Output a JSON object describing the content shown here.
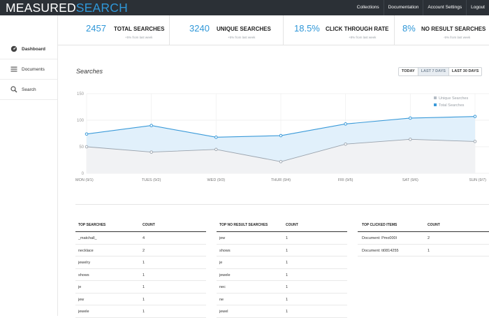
{
  "brand": {
    "part1": "MEASURED",
    "part2": "SEARCH"
  },
  "nav": [
    "Collections",
    "Documentation",
    "Account Settings",
    "Logout"
  ],
  "sidebar": [
    {
      "label": "Dashboard",
      "icon": "dashboard-icon"
    },
    {
      "label": "Documents",
      "icon": "menu-icon"
    },
    {
      "label": "Search",
      "icon": "search-icon"
    }
  ],
  "stats": [
    {
      "value": "2457",
      "label": "TOTAL SEARCHES",
      "sub": "+5% from last week"
    },
    {
      "value": "3240",
      "label": "UNIQUE SEARCHES",
      "sub": "+5% from last week"
    },
    {
      "value": "18.5%",
      "label": "CLICK THROUGH RATE",
      "sub": "+8% from last week"
    },
    {
      "value": "8%",
      "label": "NO RESULT SEARCHES",
      "sub": "-5% from last week"
    }
  ],
  "section_title": "Searches",
  "range": {
    "options": [
      "TODAY",
      "LAST 7 DAYS",
      "LAST 30 DAYS"
    ],
    "selected": "LAST 7 DAYS"
  },
  "chart_data": {
    "type": "area",
    "categories": [
      "MON (9/1)",
      "TUES (9/2)",
      "WED (9/3)",
      "THUR (9/4)",
      "FRI (9/5)",
      "SAT (9/6)",
      "SUN (9/7)"
    ],
    "series": [
      {
        "name": "Unique Searches",
        "values": [
          50,
          40,
          45,
          22,
          55,
          64,
          60
        ],
        "color": "#9aa3ad"
      },
      {
        "name": "Total Searches",
        "values": [
          74,
          90,
          68,
          71,
          93,
          104,
          107
        ],
        "color": "#3a9ad9"
      }
    ],
    "ylim": [
      0,
      150
    ],
    "yticks": [
      0,
      50,
      100,
      150
    ],
    "grid": true,
    "legend": "top-right"
  },
  "tables": [
    {
      "headers": [
        "TOP SEARCHES",
        "COUNT"
      ],
      "rows": [
        [
          "_matchall_",
          "4"
        ],
        [
          "necklace",
          "2"
        ],
        [
          "jewelry",
          "1"
        ],
        [
          "shows",
          "1"
        ],
        [
          "je",
          "1"
        ],
        [
          "jew",
          "1"
        ],
        [
          "jewele",
          "1"
        ]
      ]
    },
    {
      "headers": [
        "TOP NO RESULT SEARCHES",
        "COUNT"
      ],
      "rows": [
        [
          "jew",
          "1"
        ],
        [
          "shows",
          "1"
        ],
        [
          "je",
          "1"
        ],
        [
          "jewele",
          "1"
        ],
        [
          "nec",
          "1"
        ],
        [
          "ne",
          "1"
        ],
        [
          "jewel",
          "1"
        ]
      ]
    },
    {
      "headers": [
        "TOP CLICKED ITEMS",
        "COUNT"
      ],
      "rows": [
        [
          "Document: Pmo000l",
          "2"
        ],
        [
          "Document: tt0814255",
          "1"
        ]
      ]
    }
  ]
}
